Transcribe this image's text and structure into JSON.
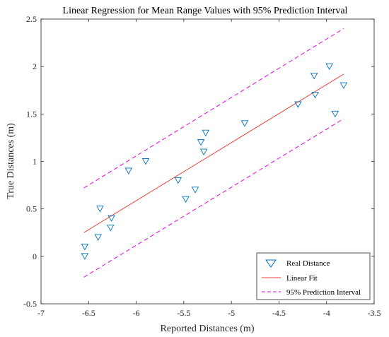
{
  "chart_data": {
    "type": "scatter",
    "title": "Linear Regression for Mean Range Values with 95% Prediction Interval",
    "xlabel": "Reported Distances (m)",
    "ylabel": "True Distances (m)",
    "xlim": [
      -7,
      -3.5
    ],
    "ylim": [
      -0.5,
      2.5
    ],
    "xticks": [
      -7,
      -6.5,
      -6,
      -5.5,
      -5,
      -4.5,
      -4,
      -3.5
    ],
    "xtick_labels": [
      "-7",
      "-6.5",
      "-6",
      "-5.5",
      "-5",
      "-4.5",
      "-4",
      "-3.5"
    ],
    "yticks": [
      -0.5,
      0,
      0.5,
      1,
      1.5,
      2,
      2.5
    ],
    "ytick_labels": [
      "-0.5",
      "0",
      "0.5",
      "1",
      "1.5",
      "2",
      "2.5"
    ],
    "grid": false,
    "legend_position": "bottom-right",
    "series": [
      {
        "name": "Real Distance",
        "kind": "scatter",
        "marker": "triangle-down",
        "color": "#0072BD",
        "points": [
          [
            -6.54,
            0.0
          ],
          [
            -6.54,
            0.1
          ],
          [
            -6.4,
            0.2
          ],
          [
            -6.38,
            0.5
          ],
          [
            -6.27,
            0.3
          ],
          [
            -6.26,
            0.4
          ],
          [
            -6.08,
            0.9
          ],
          [
            -5.9,
            1.0
          ],
          [
            -5.56,
            0.8
          ],
          [
            -5.48,
            0.6
          ],
          [
            -5.38,
            0.7
          ],
          [
            -5.32,
            1.2
          ],
          [
            -5.29,
            1.1
          ],
          [
            -5.27,
            1.3
          ],
          [
            -4.86,
            1.4
          ],
          [
            -4.3,
            1.6
          ],
          [
            -4.13,
            1.9
          ],
          [
            -4.12,
            1.7
          ],
          [
            -3.97,
            2.0
          ],
          [
            -3.91,
            1.5
          ],
          [
            -3.82,
            1.8
          ]
        ]
      },
      {
        "name": "Linear Fit",
        "kind": "line",
        "color": "#E8463C",
        "dash": "solid",
        "points": [
          [
            -6.55,
            0.25
          ],
          [
            -3.82,
            1.92
          ]
        ]
      },
      {
        "name": "95% Prediction Interval",
        "kind": "line",
        "color": "#E600E6",
        "dash": "dashed",
        "points": [
          [
            -6.55,
            0.72
          ],
          [
            -3.82,
            2.4
          ]
        ]
      },
      {
        "name": "",
        "kind": "line",
        "color": "#E600E6",
        "dash": "dashed",
        "points": [
          [
            -6.55,
            -0.22
          ],
          [
            -3.82,
            1.45
          ]
        ]
      }
    ]
  }
}
